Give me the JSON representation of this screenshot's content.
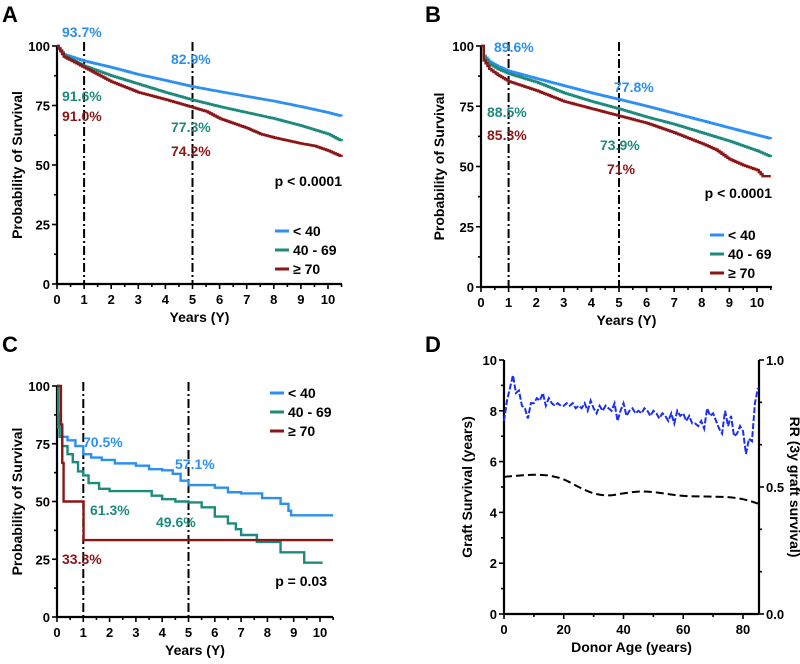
{
  "colors": {
    "lt40": "#2d8ff0",
    "mid": "#1e8a7d",
    "ge70": "#8c1515",
    "d_blue": "#1a2ff0",
    "d_black": "#000000"
  },
  "chart_data": [
    {
      "panel": "A",
      "type": "line",
      "xlabel": "Years (Y)",
      "ylabel": "Probability of Survival",
      "xlim": [
        0,
        10.5
      ],
      "ylim": [
        0,
        100
      ],
      "xticks": [
        "0",
        "1",
        "2",
        "3",
        "4",
        "5",
        "6",
        "7",
        "8",
        "9",
        "10"
      ],
      "yticks": [
        "0",
        "25",
        "50",
        "75",
        "100"
      ],
      "grid": false,
      "legend_placement": "bottom-right",
      "vlines": [
        1,
        5
      ],
      "p_value": "p < 0.0001",
      "series": [
        {
          "name": "< 40",
          "color_key": "lt40",
          "x": [
            0,
            0.25,
            0.5,
            1,
            2,
            3,
            4,
            5,
            6,
            7,
            8,
            9,
            10,
            10.5
          ],
          "y": [
            100,
            96.5,
            95.5,
            93.7,
            91,
            88,
            85.5,
            82.9,
            80.8,
            78.8,
            76.8,
            74.5,
            72,
            70.5
          ]
        },
        {
          "name": "40 - 69",
          "color_key": "mid",
          "x": [
            0,
            0.25,
            0.5,
            1,
            2,
            3,
            4,
            5,
            6,
            7,
            8,
            9,
            10,
            10.5
          ],
          "y": [
            100,
            96,
            94.5,
            91.6,
            87.5,
            84,
            80.5,
            77.3,
            74.5,
            72,
            69.5,
            66.5,
            63,
            60
          ]
        },
        {
          "name": "≥ 70",
          "color_key": "ge70",
          "x": [
            0,
            0.25,
            0.5,
            1,
            1.5,
            2,
            3,
            4,
            5,
            5.5,
            6,
            7,
            7.5,
            8,
            9,
            9.5,
            10,
            10.5
          ],
          "y": [
            100,
            95.5,
            94,
            91.0,
            88,
            85,
            80.5,
            77.5,
            74.2,
            72.5,
            69.5,
            65.5,
            63,
            61.5,
            59,
            58,
            56,
            53.5
          ]
        }
      ],
      "annotations": [
        {
          "text": "93.7%",
          "series": "< 40"
        },
        {
          "text": "91.6%",
          "series": "40 - 69"
        },
        {
          "text": "91.0%",
          "series": "≥ 70"
        },
        {
          "text": "82.9%",
          "series": "< 40"
        },
        {
          "text": "77.3%",
          "series": "40 - 69"
        },
        {
          "text": "74.2%",
          "series": "≥ 70"
        }
      ]
    },
    {
      "panel": "B",
      "type": "line",
      "xlabel": "Years (Y)",
      "ylabel": "Probability of Survival",
      "xlim": [
        0,
        10.5
      ],
      "ylim": [
        0,
        100
      ],
      "xticks": [
        "0",
        "1",
        "2",
        "3",
        "4",
        "5",
        "6",
        "7",
        "8",
        "9",
        "10"
      ],
      "yticks": [
        "0",
        "25",
        "50",
        "75",
        "100"
      ],
      "grid": false,
      "legend_placement": "bottom-right",
      "vlines": [
        1,
        5
      ],
      "p_value": "p < 0.0001",
      "series": [
        {
          "name": "< 40",
          "color_key": "lt40",
          "x": [
            0,
            0.1,
            0.3,
            0.6,
            1,
            2,
            3,
            4,
            5,
            6,
            7,
            8,
            9,
            10,
            10.5
          ],
          "y": [
            100,
            96,
            93.5,
            91.5,
            89.6,
            86.5,
            83.5,
            80.5,
            77.8,
            75,
            72,
            69,
            66,
            63,
            61.5
          ]
        },
        {
          "name": "40 - 69",
          "color_key": "mid",
          "x": [
            0,
            0.1,
            0.3,
            0.6,
            1,
            2,
            3,
            4,
            5,
            6,
            7,
            8,
            9,
            10,
            10.5
          ],
          "y": [
            100,
            95.5,
            92.5,
            90.5,
            88.5,
            85,
            80.5,
            77,
            73.9,
            70.5,
            67.5,
            64,
            60.5,
            56.5,
            54
          ]
        },
        {
          "name": "≥ 70",
          "color_key": "ge70",
          "x": [
            0,
            0.1,
            0.3,
            0.6,
            1,
            2,
            3,
            4,
            5,
            6,
            7,
            8,
            8.5,
            9,
            9.5,
            10,
            10.2,
            10.5
          ],
          "y": [
            100,
            94,
            90.5,
            88,
            85.3,
            81.5,
            77,
            74,
            71,
            68,
            64,
            59.5,
            57,
            53,
            50.5,
            48.5,
            46,
            46
          ]
        }
      ],
      "annotations": [
        {
          "text": "89.6%",
          "series": "< 40"
        },
        {
          "text": "88.5%",
          "series": "40 - 69"
        },
        {
          "text": "85.3%",
          "series": "≥ 70"
        },
        {
          "text": "77.8%",
          "series": "< 40"
        },
        {
          "text": "73.9%",
          "series": "40 - 69"
        },
        {
          "text": "71%",
          "series": "≥ 70"
        }
      ]
    },
    {
      "panel": "C",
      "type": "line",
      "xlabel": "Years (Y)",
      "ylabel": "Probability of Survival",
      "xlim": [
        0,
        10.5
      ],
      "ylim": [
        0,
        100
      ],
      "xticks": [
        "0",
        "1",
        "2",
        "3",
        "4",
        "5",
        "6",
        "7",
        "8",
        "9",
        "10"
      ],
      "yticks": [
        "0",
        "25",
        "50",
        "75",
        "100"
      ],
      "grid": false,
      "legend_placement": "top-right",
      "vlines": [
        1,
        5
      ],
      "p_value": "p = 0.03",
      "series": [
        {
          "name": "< 40",
          "color_key": "lt40",
          "x": [
            0,
            0.05,
            0.1,
            0.2,
            0.4,
            0.7,
            1,
            1.3,
            1.7,
            2.2,
            3,
            3.5,
            4,
            4.4,
            4.7,
            5,
            6,
            6.5,
            7,
            7.8,
            8.5,
            8.8,
            8.9,
            10.5
          ],
          "y": [
            100,
            88,
            82,
            78,
            76.5,
            74,
            70.5,
            69,
            68,
            66.5,
            65.5,
            64,
            63.5,
            62,
            59,
            57.1,
            56,
            54,
            53.5,
            51.5,
            49,
            46,
            44,
            44
          ]
        },
        {
          "name": "40 - 69",
          "color_key": "mid",
          "x": [
            0,
            0.05,
            0.1,
            0.2,
            0.4,
            0.6,
            0.8,
            1,
            1.2,
            1.6,
            2,
            3.2,
            3.6,
            4,
            4.5,
            5,
            5.5,
            6,
            6.5,
            6.8,
            7,
            7.6,
            8.5,
            9.4,
            10.1
          ],
          "y": [
            100,
            82,
            78,
            74,
            70.5,
            67,
            63,
            61.3,
            58,
            55.5,
            54.5,
            54.5,
            52.5,
            51,
            50,
            49.6,
            47.5,
            43.5,
            40.5,
            38,
            35.5,
            32.5,
            28,
            23.5,
            23.5
          ]
        },
        {
          "name": "≥ 70",
          "color_key": "ge70",
          "x": [
            0,
            0.1,
            0.15,
            0.2,
            0.25,
            1,
            1.01,
            10.5
          ],
          "y": [
            100,
            100,
            83.3,
            66.7,
            50,
            50,
            33.3,
            33.3
          ]
        }
      ],
      "annotations": [
        {
          "text": "70.5%",
          "series": "< 40"
        },
        {
          "text": "61.3%",
          "series": "40 - 69"
        },
        {
          "text": "33.3%",
          "series": "≥ 70"
        },
        {
          "text": "57.1%",
          "series": "< 40"
        },
        {
          "text": "49.6%",
          "series": "40 - 69"
        }
      ]
    },
    {
      "panel": "D",
      "type": "line",
      "xlabel": "Donor Age (years)",
      "ylabel": "Graft Survival (years)",
      "y2label": "RR (3y graft survival)",
      "xlim": [
        0,
        85
      ],
      "ylim": [
        0,
        10
      ],
      "y2lim": [
        0,
        1
      ],
      "xticks": [
        "0",
        "20",
        "40",
        "60",
        "80"
      ],
      "yticks": [
        "0",
        "2",
        "4",
        "6",
        "8",
        "10"
      ],
      "y2ticks": [
        "0.0",
        "0.5",
        "1.0"
      ],
      "grid": false,
      "series": [
        {
          "name": "Graft Survival",
          "axis": "left",
          "color_key": "d_blue",
          "dashed": true,
          "x": [
            0,
            1,
            2,
            3,
            4,
            5,
            6,
            7,
            8,
            9,
            10,
            11,
            12,
            13,
            14,
            15,
            16,
            17,
            18,
            19,
            20,
            21,
            22,
            23,
            24,
            25,
            26,
            27,
            28,
            29,
            30,
            31,
            32,
            33,
            34,
            35,
            36,
            37,
            38,
            39,
            40,
            41,
            42,
            43,
            44,
            45,
            46,
            47,
            48,
            49,
            50,
            51,
            52,
            53,
            54,
            55,
            56,
            57,
            58,
            59,
            60,
            61,
            62,
            63,
            64,
            65,
            66,
            67,
            68,
            69,
            70,
            71,
            72,
            73,
            74,
            75,
            76,
            77,
            78,
            79,
            80,
            81,
            82,
            83,
            84,
            85
          ],
          "y": [
            7.6,
            8.4,
            8.9,
            9.4,
            8.7,
            8.8,
            8.2,
            8.1,
            7.7,
            8.3,
            8.3,
            8.5,
            8.4,
            8.7,
            8.2,
            8.5,
            8.3,
            8.2,
            8.3,
            8.2,
            8.2,
            8.3,
            8.2,
            8.3,
            8.1,
            8.2,
            8.1,
            8.3,
            8.0,
            8.4,
            8.1,
            7.9,
            8.2,
            8.0,
            8.2,
            8.1,
            8.0,
            8.3,
            7.6,
            8.0,
            8.3,
            7.8,
            8.0,
            8.1,
            7.9,
            8.0,
            7.9,
            8.1,
            8.0,
            7.8,
            8.0,
            7.9,
            7.7,
            7.9,
            7.8,
            7.6,
            7.9,
            7.5,
            8.0,
            7.8,
            7.9,
            7.6,
            7.8,
            7.5,
            7.5,
            7.4,
            7.6,
            7.3,
            8.1,
            7.8,
            7.9,
            7.6,
            7.3,
            7.1,
            8.0,
            7.4,
            7.8,
            7.0,
            7.1,
            7.4,
            7.2,
            6.3,
            6.9,
            6.8,
            8.3,
            8.9
          ]
        },
        {
          "name": "RR (3y graft survival)",
          "axis": "right",
          "color_key": "d_black",
          "dashed": true,
          "x": [
            0,
            5,
            10,
            15,
            20,
            25,
            30,
            35,
            40,
            45,
            50,
            55,
            60,
            65,
            70,
            75,
            80,
            85
          ],
          "y": [
            0.54,
            0.545,
            0.548,
            0.545,
            0.53,
            0.5,
            0.475,
            0.467,
            0.475,
            0.482,
            0.48,
            0.472,
            0.465,
            0.463,
            0.462,
            0.46,
            0.452,
            0.435
          ]
        }
      ]
    }
  ]
}
